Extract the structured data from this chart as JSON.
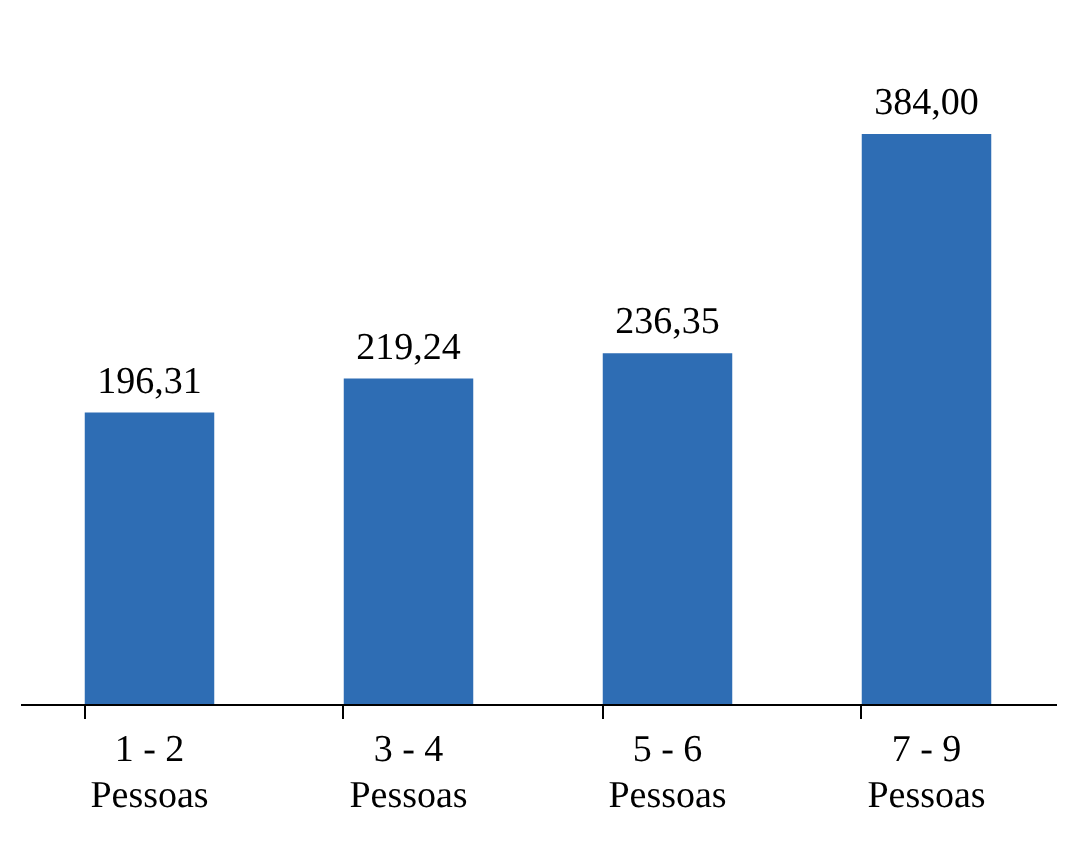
{
  "chart_data": {
    "type": "bar",
    "categories": [
      "1 - 2\nPessoas",
      "3 - 4\nPessoas",
      "5 - 6\nPessoas",
      "7 - 9\nPessoas"
    ],
    "values": [
      196.31,
      219.24,
      236.35,
      384.0
    ],
    "value_labels": [
      "196,31",
      "219,24",
      "236,35",
      "384,00"
    ],
    "color": "#2e6db4"
  }
}
